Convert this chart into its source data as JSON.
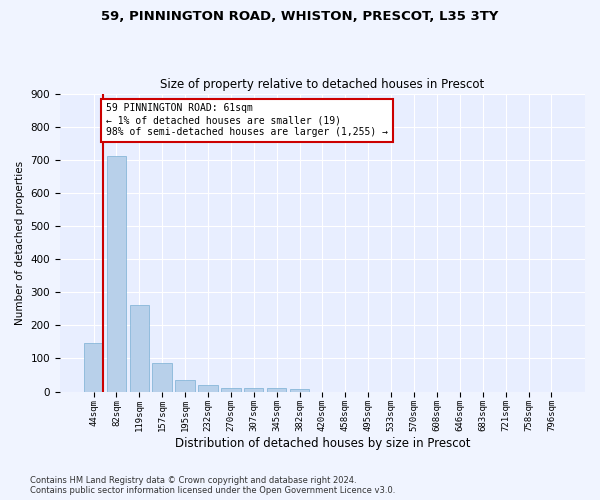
{
  "title_line1": "59, PINNINGTON ROAD, WHISTON, PRESCOT, L35 3TY",
  "title_line2": "Size of property relative to detached houses in Prescot",
  "xlabel": "Distribution of detached houses by size in Prescot",
  "ylabel": "Number of detached properties",
  "footer_line1": "Contains HM Land Registry data © Crown copyright and database right 2024.",
  "footer_line2": "Contains public sector information licensed under the Open Government Licence v3.0.",
  "bar_labels": [
    "44sqm",
    "82sqm",
    "119sqm",
    "157sqm",
    "195sqm",
    "232sqm",
    "270sqm",
    "307sqm",
    "345sqm",
    "382sqm",
    "420sqm",
    "458sqm",
    "495sqm",
    "533sqm",
    "570sqm",
    "608sqm",
    "646sqm",
    "683sqm",
    "721sqm",
    "758sqm",
    "796sqm"
  ],
  "bar_values": [
    148,
    711,
    260,
    85,
    35,
    20,
    11,
    11,
    11,
    8,
    0,
    0,
    0,
    0,
    0,
    0,
    0,
    0,
    0,
    0,
    0
  ],
  "bar_color": "#b8d0ea",
  "bar_edge_color": "#7aafd4",
  "annotation_text": "59 PINNINGTON ROAD: 61sqm\n← 1% of detached houses are smaller (19)\n98% of semi-detached houses are larger (1,255) →",
  "annotation_box_color": "#ffffff",
  "annotation_box_edge": "#cc0000",
  "property_line_x": 0.42,
  "ylim": [
    0,
    900
  ],
  "yticks": [
    0,
    100,
    200,
    300,
    400,
    500,
    600,
    700,
    800,
    900
  ],
  "bg_color": "#f0f4ff",
  "plot_bg_color": "#e8eeff"
}
